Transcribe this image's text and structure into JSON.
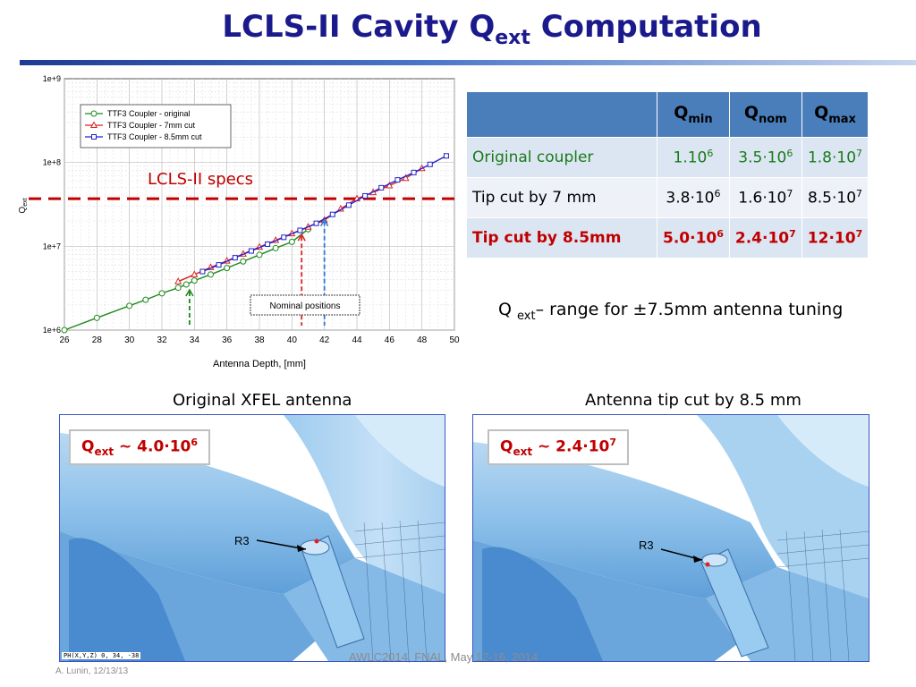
{
  "slide": {
    "title_main": "LCLS-II Cavity Q",
    "title_sub": "ext",
    "title_tail": " Computation",
    "footer": "AWLC2014, FNAL, May 12-16, 2014",
    "author": "A. Lunin, 12/13/13"
  },
  "table": {
    "headers": [
      {
        "base": "Q",
        "sub": "min"
      },
      {
        "base": "Q",
        "sub": "nom"
      },
      {
        "base": "Q",
        "sub": "max"
      }
    ],
    "rows": [
      {
        "label": "Original coupler",
        "cells": [
          {
            "m": "1.10",
            "e": "6"
          },
          {
            "m": "3.5·10",
            "e": "6"
          },
          {
            "m": "1.8·10",
            "e": "7"
          }
        ]
      },
      {
        "label": "Tip cut by 7 mm",
        "cells": [
          {
            "m": "3.8·10",
            "e": "6"
          },
          {
            "m": "1.6·10",
            "e": "7"
          },
          {
            "m": "8.5·10",
            "e": "7"
          }
        ]
      },
      {
        "label": "Tip cut by 8.5mm",
        "cells": [
          {
            "m": "5.0·10",
            "e": "6"
          },
          {
            "m": "2.4·10",
            "e": "7"
          },
          {
            "m": "12·10",
            "e": "7"
          }
        ]
      }
    ]
  },
  "caption": {
    "q": "Q ",
    "sub": "ext",
    "text": "– range for ±7.5mm antenna tuning"
  },
  "images": {
    "left": {
      "title": "Original XFEL antenna",
      "q": "Q",
      "sub": "ext",
      "val": " ~ 4.0·10",
      "exp": "6",
      "r3": "R3",
      "status": "PH(X,Y,Z) 0, 34, -38"
    },
    "right": {
      "title": "Antenna tip cut by 8.5 mm",
      "q": "Q",
      "sub": "ext",
      "val": " ~ 2.4·10",
      "exp": "7",
      "r3": "R3"
    }
  },
  "chart_data": {
    "type": "line",
    "xlabel": "Antenna Depth, [mm]",
    "ylabel": "Q_ext",
    "xlim": [
      26,
      50
    ],
    "ylim": [
      1000000,
      1000000000
    ],
    "y_scale": "log",
    "x_ticks": [
      26,
      28,
      30,
      32,
      34,
      36,
      38,
      40,
      42,
      44,
      46,
      48,
      50
    ],
    "y_ticks": [
      {
        "v": 1000000,
        "label": "1e+6"
      },
      {
        "v": 10000000,
        "label": "1e+7"
      },
      {
        "v": 100000000,
        "label": "1e+8"
      },
      {
        "v": 1000000000,
        "label": "1e+9"
      }
    ],
    "legend_position": "top-left",
    "grid": true,
    "series": [
      {
        "name": "TTF3 Coupler - original",
        "color": "#1a8a1a",
        "marker": "circle",
        "x": [
          26,
          28,
          30,
          31,
          32,
          33,
          33.5,
          34,
          35,
          36,
          37,
          38,
          39,
          40,
          41
        ],
        "y": [
          1000000,
          1400000,
          1950000,
          2300000,
          2750000,
          3200000,
          3500000,
          3900000,
          4600000,
          5500000,
          6600000,
          7900000,
          9500000,
          11300000,
          16000000
        ]
      },
      {
        "name": "TTF3 Coupler - 7mm cut",
        "color": "#dd2222",
        "marker": "triangle",
        "x": [
          33,
          34,
          35,
          36,
          37,
          38,
          39,
          40,
          41,
          42,
          43,
          44,
          45,
          46,
          47,
          48
        ],
        "y": [
          3800000,
          4600000,
          5600000,
          6700000,
          8100000,
          9800000,
          11800000,
          14200000,
          17000000,
          20500000,
          28000000,
          37000000,
          44000000,
          53000000,
          65000000,
          85000000
        ]
      },
      {
        "name": "TTF3 Coupler - 8.5mm cut",
        "color": "#2222cc",
        "marker": "square",
        "x": [
          34.5,
          35.5,
          36.5,
          37.5,
          38.5,
          39.5,
          40.5,
          41.5,
          42.5,
          43.5,
          44.5,
          45.5,
          46.5,
          47.5,
          48.5,
          49.5
        ],
        "y": [
          5000000,
          6000000,
          7300000,
          8800000,
          10600000,
          12800000,
          15500000,
          18800000,
          24000000,
          31000000,
          40000000,
          50000000,
          62000000,
          76000000,
          95000000,
          120000000
        ]
      }
    ],
    "spec_level": 37000000,
    "spec_label": "LCLS-II specs",
    "annotation_box": "Nominal positions",
    "nominal_arrows": [
      {
        "x": 33.7,
        "y": 3500000,
        "color": "#1a8a1a"
      },
      {
        "x": 40.6,
        "y": 16000000,
        "color": "#dd2222"
      },
      {
        "x": 42,
        "y": 24000000,
        "color": "#2a7ad8"
      }
    ]
  }
}
